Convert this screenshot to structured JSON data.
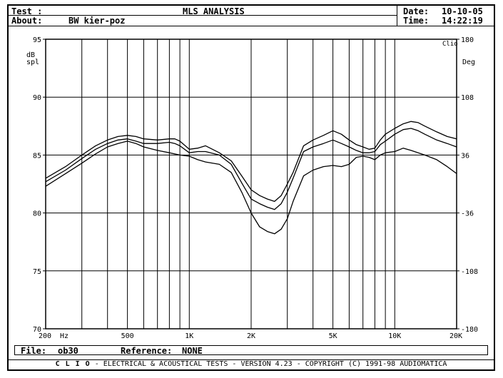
{
  "header": {
    "test_label": "Test :",
    "title": "MLS ANALYSIS",
    "date_label": "Date:",
    "date_value": "10-10-05",
    "about_label": "About:",
    "about_value": "BW kier-poz",
    "time_label": "Time:",
    "time_value": "14:22:19"
  },
  "footer": {
    "file_label": "File:",
    "file_value": "ob30",
    "reference_label": "Reference:",
    "reference_value": "NONE",
    "app_name": "C L I O",
    "app_text": "-  ELECTRICAL & ACOUSTICAL TESTS  -  VERSION 4.23  -  COPYRIGHT (C) 1991-98 AUDIOMATICA"
  },
  "chart_data": {
    "type": "line",
    "xscale": "log",
    "xlim": [
      200,
      20000
    ],
    "ylim": [
      70,
      95
    ],
    "y2lim": [
      -180,
      180
    ],
    "ylabel": "dB spl",
    "y2label": "Deg",
    "corner_label": "Clio",
    "xunit": "Hz",
    "x_tick_labels": [
      {
        "value": 200,
        "label": "200"
      },
      {
        "value": 500,
        "label": "500"
      },
      {
        "value": 1000,
        "label": "1K"
      },
      {
        "value": 2000,
        "label": "2K"
      },
      {
        "value": 5000,
        "label": "5K"
      },
      {
        "value": 10000,
        "label": "10K"
      },
      {
        "value": 20000,
        "label": "20K"
      }
    ],
    "y_ticks": [
      70,
      75,
      80,
      85,
      90,
      95
    ],
    "y2_ticks": [
      -180,
      -108,
      -36,
      36,
      108,
      180
    ],
    "grid": true,
    "series": [
      {
        "x": [
          200,
          250,
          300,
          350,
          400,
          450,
          500,
          550,
          600,
          700,
          800,
          850,
          900,
          1000,
          1100,
          1200,
          1400,
          1600,
          1800,
          2000,
          2200,
          2400,
          2600,
          2800,
          3000,
          3200,
          3600,
          4000,
          4500,
          5000,
          5500,
          6000,
          6500,
          7000,
          7500,
          8000,
          8500,
          9000,
          10000,
          11000,
          12000,
          13000,
          14000,
          16000,
          18000,
          20000
        ],
        "y": [
          83.0,
          84.0,
          85.0,
          85.8,
          86.3,
          86.6,
          86.7,
          86.6,
          86.4,
          86.3,
          86.4,
          86.4,
          86.2,
          85.5,
          85.6,
          85.8,
          85.2,
          84.5,
          83.2,
          82.0,
          81.5,
          81.2,
          81.0,
          81.5,
          82.5,
          83.5,
          85.8,
          86.3,
          86.7,
          87.1,
          86.8,
          86.3,
          85.9,
          85.7,
          85.5,
          85.6,
          86.3,
          86.8,
          87.3,
          87.7,
          87.9,
          87.8,
          87.5,
          87.0,
          86.6,
          86.4
        ]
      },
      {
        "x": [
          200,
          250,
          300,
          350,
          400,
          450,
          500,
          550,
          600,
          700,
          800,
          850,
          900,
          1000,
          1100,
          1200,
          1400,
          1600,
          1800,
          2000,
          2200,
          2400,
          2600,
          2800,
          3000,
          3200,
          3600,
          4000,
          4500,
          5000,
          5500,
          6000,
          6500,
          7000,
          7500,
          8000,
          8500,
          9000,
          10000,
          11000,
          12000,
          13000,
          14000,
          16000,
          18000,
          20000
        ],
        "y": [
          82.7,
          83.7,
          84.7,
          85.5,
          86.0,
          86.3,
          86.4,
          86.2,
          86.0,
          86.0,
          86.1,
          86.0,
          85.8,
          85.2,
          85.3,
          85.3,
          85.0,
          84.2,
          82.6,
          81.2,
          80.8,
          80.5,
          80.3,
          80.8,
          81.8,
          83.0,
          85.3,
          85.7,
          86.0,
          86.3,
          86.0,
          85.7,
          85.4,
          85.2,
          85.2,
          85.3,
          85.9,
          86.2,
          86.8,
          87.2,
          87.3,
          87.1,
          86.8,
          86.3,
          86.0,
          85.7
        ]
      },
      {
        "x": [
          200,
          250,
          300,
          350,
          400,
          450,
          500,
          550,
          600,
          700,
          800,
          900,
          1000,
          1100,
          1200,
          1400,
          1600,
          1800,
          2000,
          2200,
          2400,
          2600,
          2800,
          3000,
          3200,
          3600,
          4000,
          4500,
          5000,
          5500,
          6000,
          6500,
          7000,
          7500,
          8000,
          8500,
          9000,
          10000,
          11000,
          12000,
          13000,
          14000,
          16000,
          18000,
          20000
        ],
        "y": [
          82.3,
          83.4,
          84.3,
          85.1,
          85.7,
          86.0,
          86.2,
          86.0,
          85.7,
          85.4,
          85.2,
          85.0,
          84.9,
          84.6,
          84.4,
          84.2,
          83.5,
          81.8,
          80.0,
          78.8,
          78.4,
          78.2,
          78.6,
          79.5,
          81.0,
          83.2,
          83.7,
          84.0,
          84.1,
          84.0,
          84.2,
          84.8,
          84.9,
          84.8,
          84.6,
          85.0,
          85.2,
          85.3,
          85.6,
          85.4,
          85.2,
          85.0,
          84.6,
          84.0,
          83.4
        ]
      }
    ]
  }
}
